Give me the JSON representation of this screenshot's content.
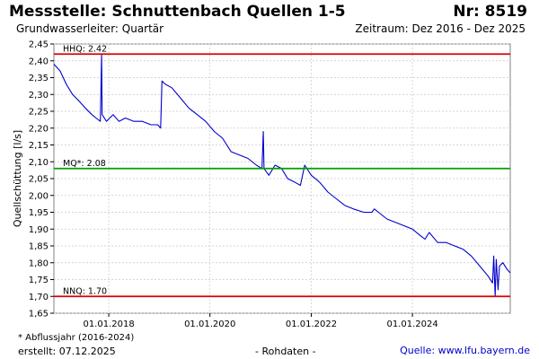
{
  "header": {
    "title": "Messstelle: Schnuttenbach Quellen 1-5",
    "station_number": "Nr: 8519",
    "aquifer": "Grundwasserleiter: Quartär",
    "period": "Zeitraum: Dez 2016 - Dez 2025"
  },
  "footer": {
    "footnote": "* Abflussjahr (2016-2024)",
    "created": "erstellt:  07.12.2025",
    "raw_data": "- Rohdaten -",
    "source": "Quelle: www.lfu.bayern.de"
  },
  "colors": {
    "series": "#0000cc",
    "hhq": "#e00000",
    "mq": "#00a000",
    "nnq": "#e00000",
    "grid": "#c8c8c8"
  },
  "chart_data": {
    "type": "line",
    "ylabel": "Quellschüttung [l/s]",
    "xlabel": "",
    "xlim": [
      "2016-12-01",
      "2025-12-07"
    ],
    "ylim": [
      1.65,
      2.45
    ],
    "yticks": [
      1.65,
      1.7,
      1.75,
      1.8,
      1.85,
      1.9,
      1.95,
      2.0,
      2.05,
      2.1,
      2.15,
      2.2,
      2.25,
      2.3,
      2.35,
      2.4,
      2.45
    ],
    "ytick_labels": [
      "1,65",
      "1,70",
      "1,75",
      "1,80",
      "1,85",
      "1,90",
      "1,95",
      "2,00",
      "2,05",
      "2,10",
      "2,15",
      "2,20",
      "2,25",
      "2,30",
      "2,35",
      "2,40",
      "2,45"
    ],
    "xticks": [
      "2018-01-01",
      "2020-01-01",
      "2022-01-01",
      "2024-01-01"
    ],
    "xtick_labels": [
      "01.01.2018",
      "01.01.2020",
      "01.01.2022",
      "01.01.2024"
    ],
    "grid": true,
    "reference_lines": [
      {
        "name": "HHQ",
        "label": "HHQ: 2.42",
        "value": 2.42
      },
      {
        "name": "MQ",
        "label": "MQ*: 2.08",
        "value": 2.08
      },
      {
        "name": "NNQ",
        "label": "NNQ: 1.70",
        "value": 1.7
      }
    ],
    "series": [
      {
        "points": [
          [
            "2016-12-01",
            2.39
          ],
          [
            "2017-01-15",
            2.37
          ],
          [
            "2017-03-01",
            2.33
          ],
          [
            "2017-04-15",
            2.3
          ],
          [
            "2017-06-01",
            2.28
          ],
          [
            "2017-07-15",
            2.26
          ],
          [
            "2017-09-01",
            2.24
          ],
          [
            "2017-10-01",
            2.23
          ],
          [
            "2017-11-01",
            2.22
          ],
          [
            "2017-11-10",
            2.42
          ],
          [
            "2017-11-14",
            2.24
          ],
          [
            "2017-12-15",
            2.22
          ],
          [
            "2018-02-01",
            2.24
          ],
          [
            "2018-03-15",
            2.22
          ],
          [
            "2018-05-01",
            2.23
          ],
          [
            "2018-07-01",
            2.22
          ],
          [
            "2018-09-01",
            2.22
          ],
          [
            "2018-11-01",
            2.21
          ],
          [
            "2018-12-20",
            2.21
          ],
          [
            "2019-01-10",
            2.2
          ],
          [
            "2019-01-20",
            2.34
          ],
          [
            "2019-02-15",
            2.33
          ],
          [
            "2019-04-01",
            2.32
          ],
          [
            "2019-06-01",
            2.29
          ],
          [
            "2019-08-01",
            2.26
          ],
          [
            "2019-10-01",
            2.24
          ],
          [
            "2019-12-01",
            2.22
          ],
          [
            "2020-02-01",
            2.19
          ],
          [
            "2020-04-01",
            2.17
          ],
          [
            "2020-06-01",
            2.13
          ],
          [
            "2020-08-01",
            2.12
          ],
          [
            "2020-10-01",
            2.11
          ],
          [
            "2020-12-01",
            2.09
          ],
          [
            "2021-01-10",
            2.08
          ],
          [
            "2021-01-20",
            2.19
          ],
          [
            "2021-01-25",
            2.08
          ],
          [
            "2021-03-01",
            2.06
          ],
          [
            "2021-04-15",
            2.09
          ],
          [
            "2021-06-01",
            2.08
          ],
          [
            "2021-07-15",
            2.05
          ],
          [
            "2021-09-01",
            2.04
          ],
          [
            "2021-10-15",
            2.03
          ],
          [
            "2021-11-15",
            2.09
          ],
          [
            "2022-01-01",
            2.06
          ],
          [
            "2022-03-01",
            2.04
          ],
          [
            "2022-05-01",
            2.01
          ],
          [
            "2022-07-01",
            1.99
          ],
          [
            "2022-09-01",
            1.97
          ],
          [
            "2022-11-01",
            1.96
          ],
          [
            "2023-01-15",
            1.95
          ],
          [
            "2023-03-15",
            1.95
          ],
          [
            "2023-04-01",
            1.96
          ],
          [
            "2023-05-01",
            1.95
          ],
          [
            "2023-07-01",
            1.93
          ],
          [
            "2023-09-01",
            1.92
          ],
          [
            "2023-11-01",
            1.91
          ],
          [
            "2024-01-01",
            1.9
          ],
          [
            "2024-03-01",
            1.88
          ],
          [
            "2024-04-01",
            1.87
          ],
          [
            "2024-05-01",
            1.89
          ],
          [
            "2024-07-01",
            1.86
          ],
          [
            "2024-09-01",
            1.86
          ],
          [
            "2024-11-01",
            1.85
          ],
          [
            "2025-01-01",
            1.84
          ],
          [
            "2025-03-01",
            1.82
          ],
          [
            "2025-05-01",
            1.79
          ],
          [
            "2025-07-01",
            1.76
          ],
          [
            "2025-08-01",
            1.74
          ],
          [
            "2025-08-10",
            1.82
          ],
          [
            "2025-08-20",
            1.7
          ],
          [
            "2025-08-28",
            1.81
          ],
          [
            "2025-09-10",
            1.72
          ],
          [
            "2025-09-20",
            1.79
          ],
          [
            "2025-10-15",
            1.8
          ],
          [
            "2025-11-15",
            1.78
          ],
          [
            "2025-12-07",
            1.77
          ]
        ]
      }
    ]
  }
}
